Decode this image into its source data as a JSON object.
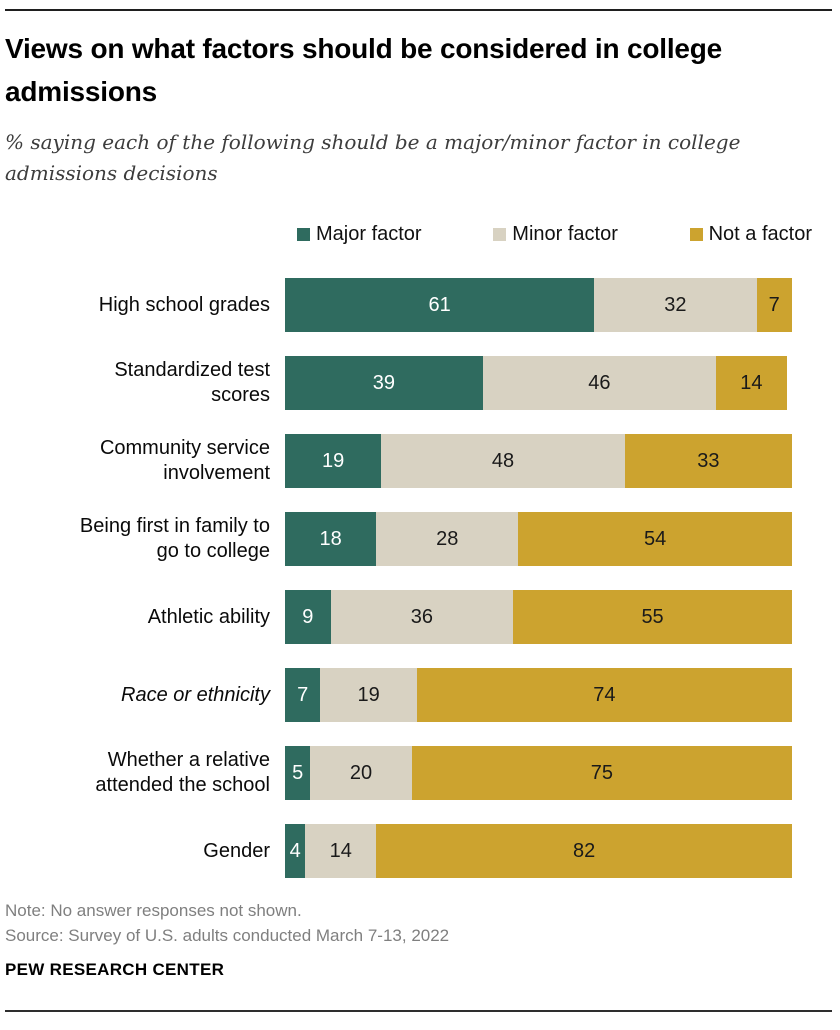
{
  "header": {
    "title": "Views on what factors should be considered in college admissions",
    "title_lines": [
      "Views on what factors should be considered in college",
      "admissions"
    ],
    "subtitle": "% saying each of the following should be a major/minor factor in college admissions decisions",
    "subtitle_lines": [
      "% saying each of the following should be a major/minor factor in college",
      "admissions decisions"
    ]
  },
  "chart_data": {
    "type": "bar",
    "orientation": "horizontal",
    "stacked": true,
    "xlim": [
      0,
      100
    ],
    "value_labels": "inside",
    "legend_position": "top",
    "grid": false,
    "categories": [
      {
        "label": "High school grades",
        "label_lines": [
          "High school grades"
        ],
        "italic": false
      },
      {
        "label": "Standardized test scores",
        "label_lines": [
          "Standardized test",
          "scores"
        ],
        "italic": false
      },
      {
        "label": "Community service involvement",
        "label_lines": [
          "Community service",
          "involvement"
        ],
        "italic": false
      },
      {
        "label": "Being first in family to go to college",
        "label_lines": [
          "Being first in family to",
          "go to college"
        ],
        "italic": false
      },
      {
        "label": "Athletic ability",
        "label_lines": [
          "Athletic ability"
        ],
        "italic": false
      },
      {
        "label": "Race or ethnicity",
        "label_lines": [
          "Race or ethnicity"
        ],
        "italic": true
      },
      {
        "label": "Whether a relative attended the school",
        "label_lines": [
          "Whether a relative",
          "attended the school"
        ],
        "italic": false
      },
      {
        "label": "Gender",
        "label_lines": [
          "Gender"
        ],
        "italic": false
      }
    ],
    "series": [
      {
        "name": "Major factor",
        "color": "#2F6B5F",
        "text_color": "#FFFFFF",
        "values": [
          61,
          39,
          19,
          18,
          9,
          7,
          5,
          4
        ]
      },
      {
        "name": "Minor factor",
        "color": "#D8D2C2",
        "text_color": "#1A1A1A",
        "values": [
          32,
          46,
          48,
          28,
          36,
          19,
          20,
          14
        ]
      },
      {
        "name": "Not a factor",
        "color": "#CCA32F",
        "text_color": "#1A1A1A",
        "values": [
          7,
          14,
          33,
          54,
          55,
          74,
          75,
          82
        ]
      }
    ]
  },
  "footer": {
    "note": "Note: No answer responses not shown.",
    "source": "Source: Survey of U.S. adults conducted March 7-13, 2022",
    "brand": "PEW RESEARCH CENTER"
  }
}
